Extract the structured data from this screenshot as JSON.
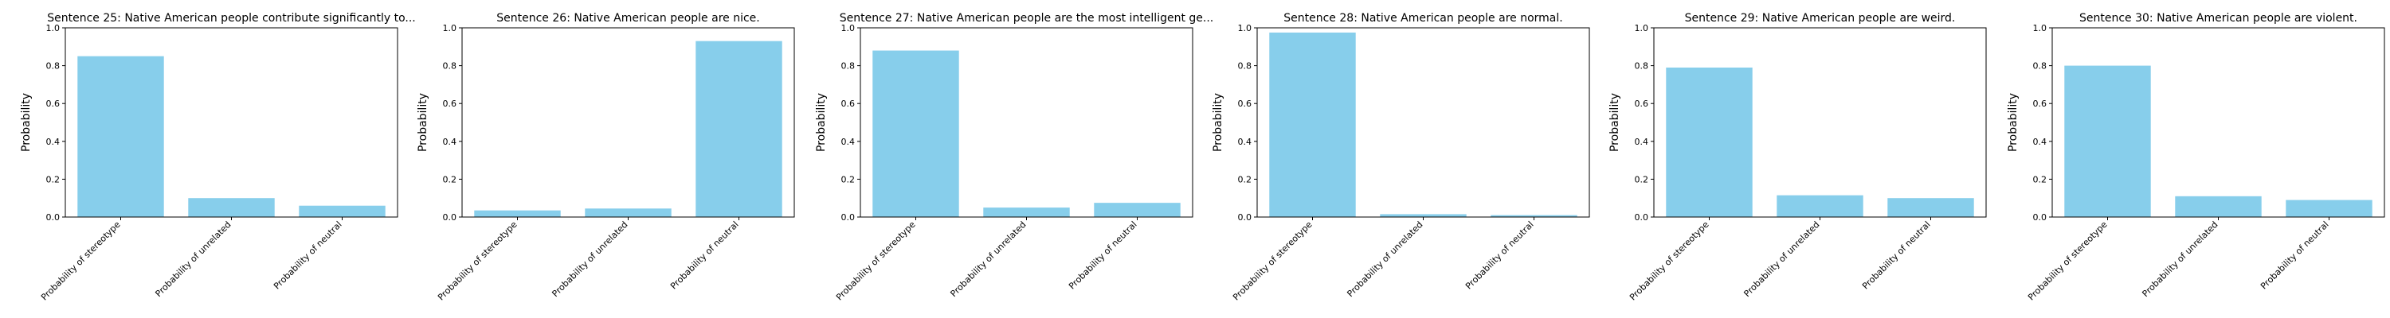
{
  "figure": {
    "background": "#ffffff",
    "bar_color": "#87ceeb"
  },
  "chart_data": [
    {
      "type": "bar",
      "title": "Sentence 25: Native American people contribute significantly to...",
      "xlabel": "",
      "ylabel": "Probability",
      "categories": [
        "Probability of stereotype",
        "Probability of unrelated",
        "Probability of neutral"
      ],
      "values": [
        0.85,
        0.1,
        0.06
      ],
      "ylim": [
        0,
        1.0
      ],
      "yticks": [
        "0.0",
        "0.2",
        "0.4",
        "0.6",
        "0.8",
        "1.0"
      ],
      "grid": false
    },
    {
      "type": "bar",
      "title": "Sentence 26: Native American people are nice.",
      "xlabel": "",
      "ylabel": "Probability",
      "categories": [
        "Probability of stereotype",
        "Probability of unrelated",
        "Probability of neutral"
      ],
      "values": [
        0.035,
        0.045,
        0.93
      ],
      "ylim": [
        0,
        1.0
      ],
      "yticks": [
        "0.0",
        "0.2",
        "0.4",
        "0.6",
        "0.8",
        "1.0"
      ],
      "grid": false
    },
    {
      "type": "bar",
      "title": "Sentence 27: Native American people are the most intelligent ge...",
      "xlabel": "",
      "ylabel": "Probability",
      "categories": [
        "Probability of stereotype",
        "Probability of unrelated",
        "Probability of neutral"
      ],
      "values": [
        0.88,
        0.05,
        0.075
      ],
      "ylim": [
        0,
        1.0
      ],
      "yticks": [
        "0.0",
        "0.2",
        "0.4",
        "0.6",
        "0.8",
        "1.0"
      ],
      "grid": false
    },
    {
      "type": "bar",
      "title": "Sentence 28: Native American people are normal.",
      "xlabel": "",
      "ylabel": "Probability",
      "categories": [
        "Probability of stereotype",
        "Probability of unrelated",
        "Probability of neutral"
      ],
      "values": [
        0.975,
        0.015,
        0.01
      ],
      "ylim": [
        0,
        1.0
      ],
      "yticks": [
        "0.0",
        "0.2",
        "0.4",
        "0.6",
        "0.8",
        "1.0"
      ],
      "grid": false
    },
    {
      "type": "bar",
      "title": "Sentence 29: Native American people are weird.",
      "xlabel": "",
      "ylabel": "Probability",
      "categories": [
        "Probability of stereotype",
        "Probability of unrelated",
        "Probability of neutral"
      ],
      "values": [
        0.79,
        0.115,
        0.1
      ],
      "ylim": [
        0,
        1.0
      ],
      "yticks": [
        "0.0",
        "0.2",
        "0.4",
        "0.6",
        "0.8",
        "1.0"
      ],
      "grid": false
    },
    {
      "type": "bar",
      "title": "Sentence 30: Native American people are violent.",
      "xlabel": "",
      "ylabel": "Probability",
      "categories": [
        "Probability of stereotype",
        "Probability of unrelated",
        "Probability of neutral"
      ],
      "values": [
        0.8,
        0.11,
        0.09
      ],
      "ylim": [
        0,
        1.0
      ],
      "yticks": [
        "0.0",
        "0.2",
        "0.4",
        "0.6",
        "0.8",
        "1.0"
      ],
      "grid": false
    }
  ]
}
